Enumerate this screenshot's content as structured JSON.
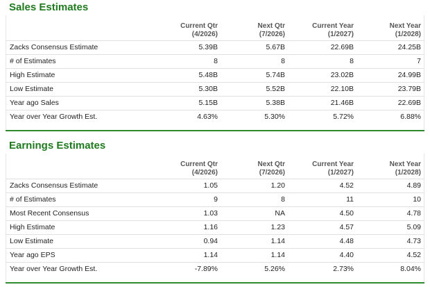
{
  "sections": [
    {
      "title": "Sales Estimates",
      "columns": [
        {
          "label": "Current Qtr",
          "period": "(4/2026)"
        },
        {
          "label": "Next Qtr",
          "period": "(7/2026)"
        },
        {
          "label": "Current Year",
          "period": "(1/2027)"
        },
        {
          "label": "Next Year",
          "period": "(1/2028)"
        }
      ],
      "rows": [
        [
          "Zacks Consensus Estimate",
          "5.39B",
          "5.67B",
          "22.69B",
          "24.25B"
        ],
        [
          "# of Estimates",
          "8",
          "8",
          "8",
          "7"
        ],
        [
          "High Estimate",
          "5.48B",
          "5.74B",
          "23.02B",
          "24.99B"
        ],
        [
          "Low Estimate",
          "5.30B",
          "5.52B",
          "22.10B",
          "23.79B"
        ],
        [
          "Year ago Sales",
          "5.15B",
          "5.38B",
          "21.46B",
          "22.69B"
        ],
        [
          "Year over Year Growth Est.",
          "4.63%",
          "5.30%",
          "5.72%",
          "6.88%"
        ]
      ]
    },
    {
      "title": "Earnings Estimates",
      "columns": [
        {
          "label": "Current Qtr",
          "period": "(4/2026)"
        },
        {
          "label": "Next Qtr",
          "period": "(7/2026)"
        },
        {
          "label": "Current Year",
          "period": "(1/2027)"
        },
        {
          "label": "Next Year",
          "period": "(1/2028)"
        }
      ],
      "rows": [
        [
          "Zacks Consensus Estimate",
          "1.05",
          "1.20",
          "4.52",
          "4.89"
        ],
        [
          "# of Estimates",
          "9",
          "8",
          "11",
          "10"
        ],
        [
          "Most Recent Consensus",
          "1.03",
          "NA",
          "4.50",
          "4.78"
        ],
        [
          "High Estimate",
          "1.16",
          "1.23",
          "4.57",
          "5.09"
        ],
        [
          "Low Estimate",
          "0.94",
          "1.14",
          "4.48",
          "4.73"
        ],
        [
          "Year ago EPS",
          "1.14",
          "1.14",
          "4.40",
          "4.52"
        ],
        [
          "Year over Year Growth Est.",
          "-7.89%",
          "5.26%",
          "2.73%",
          "8.04%"
        ]
      ]
    }
  ]
}
